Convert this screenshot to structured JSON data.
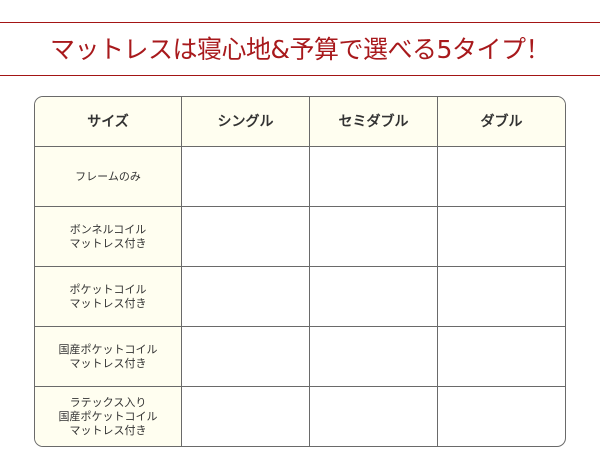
{
  "title": "マットレスは寝心地&予算で選べる5タイプ！",
  "table": {
    "headers": [
      "サイズ",
      "シングル",
      "セミダブル",
      "ダブル"
    ],
    "rows": [
      [
        "フレームのみ"
      ],
      [
        "ボンネルコイル",
        "マットレス付き"
      ],
      [
        "ポケットコイル",
        "マットレス付き"
      ],
      [
        "国産ポケットコイル",
        "マットレス付き"
      ],
      [
        "ラテックス入り",
        "国産ポケットコイル",
        "マットレス付き"
      ]
    ]
  }
}
